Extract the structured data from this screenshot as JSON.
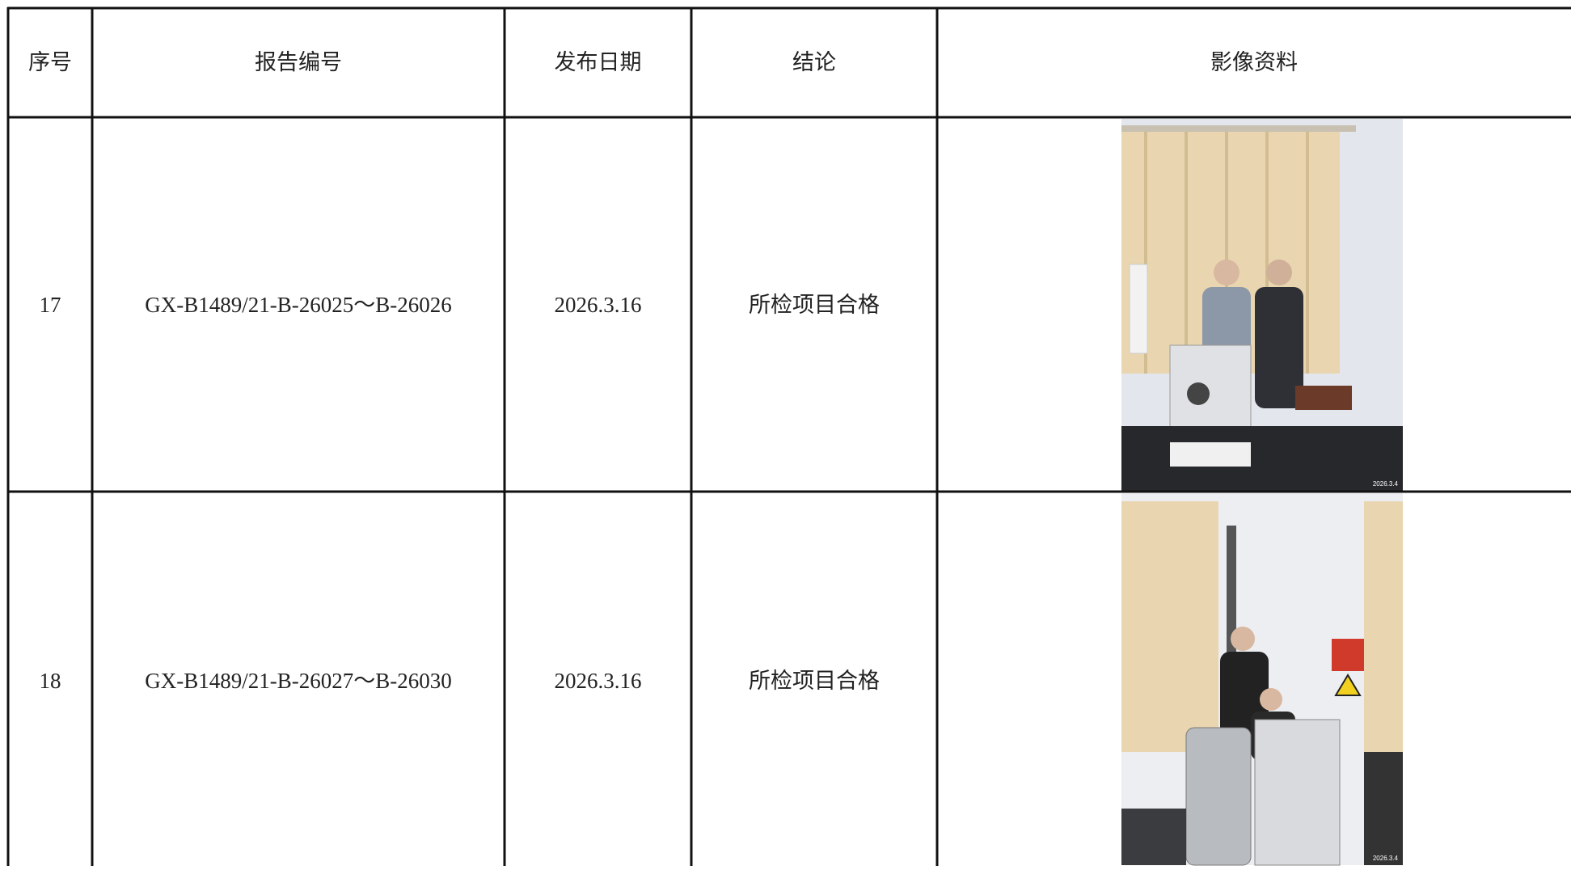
{
  "table": {
    "headers": [
      "序号",
      "报告编号",
      "发布日期",
      "结论",
      "影像资料"
    ],
    "rows": [
      [
        "17",
        "GX-B1489/21-B-26025～B-26026",
        "2026.3.16",
        "所检项目合格"
      ],
      [
        "18",
        "GX-B1489/21-B-26027～B-26030",
        "2026.3.16",
        "所检项目合格"
      ]
    ],
    "photo_stamps": [
      "2026.3.4",
      "2026.3.4"
    ]
  }
}
